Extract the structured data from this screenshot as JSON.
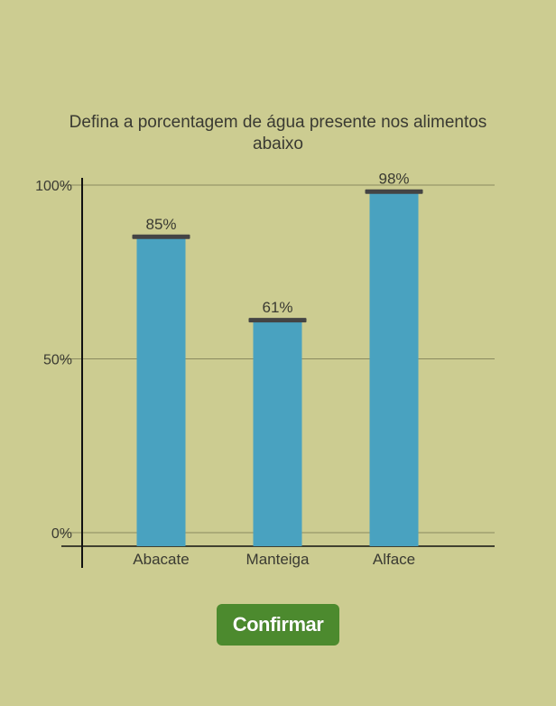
{
  "question": "Defina a porcentagem de água presente nos alimentos abaixo",
  "confirm_label": "Confirmar",
  "colors": {
    "background": "#cccc91",
    "bar": "#49a2c0",
    "handle": "#444444",
    "button": "#4c8a2e",
    "gridline": "#8a8a60"
  },
  "chart_data": {
    "type": "bar",
    "title": "",
    "xlabel": "",
    "ylabel": "",
    "categories": [
      "Abacate",
      "Manteiga",
      "Alface"
    ],
    "values": [
      85,
      61,
      98
    ],
    "value_labels": [
      "85%",
      "61%",
      "98%"
    ],
    "ylim": [
      0,
      100
    ],
    "yticks": [
      {
        "value": 0,
        "label": "0%"
      },
      {
        "value": 50,
        "label": "50%"
      },
      {
        "value": 100,
        "label": "100%"
      }
    ],
    "grid": true
  }
}
